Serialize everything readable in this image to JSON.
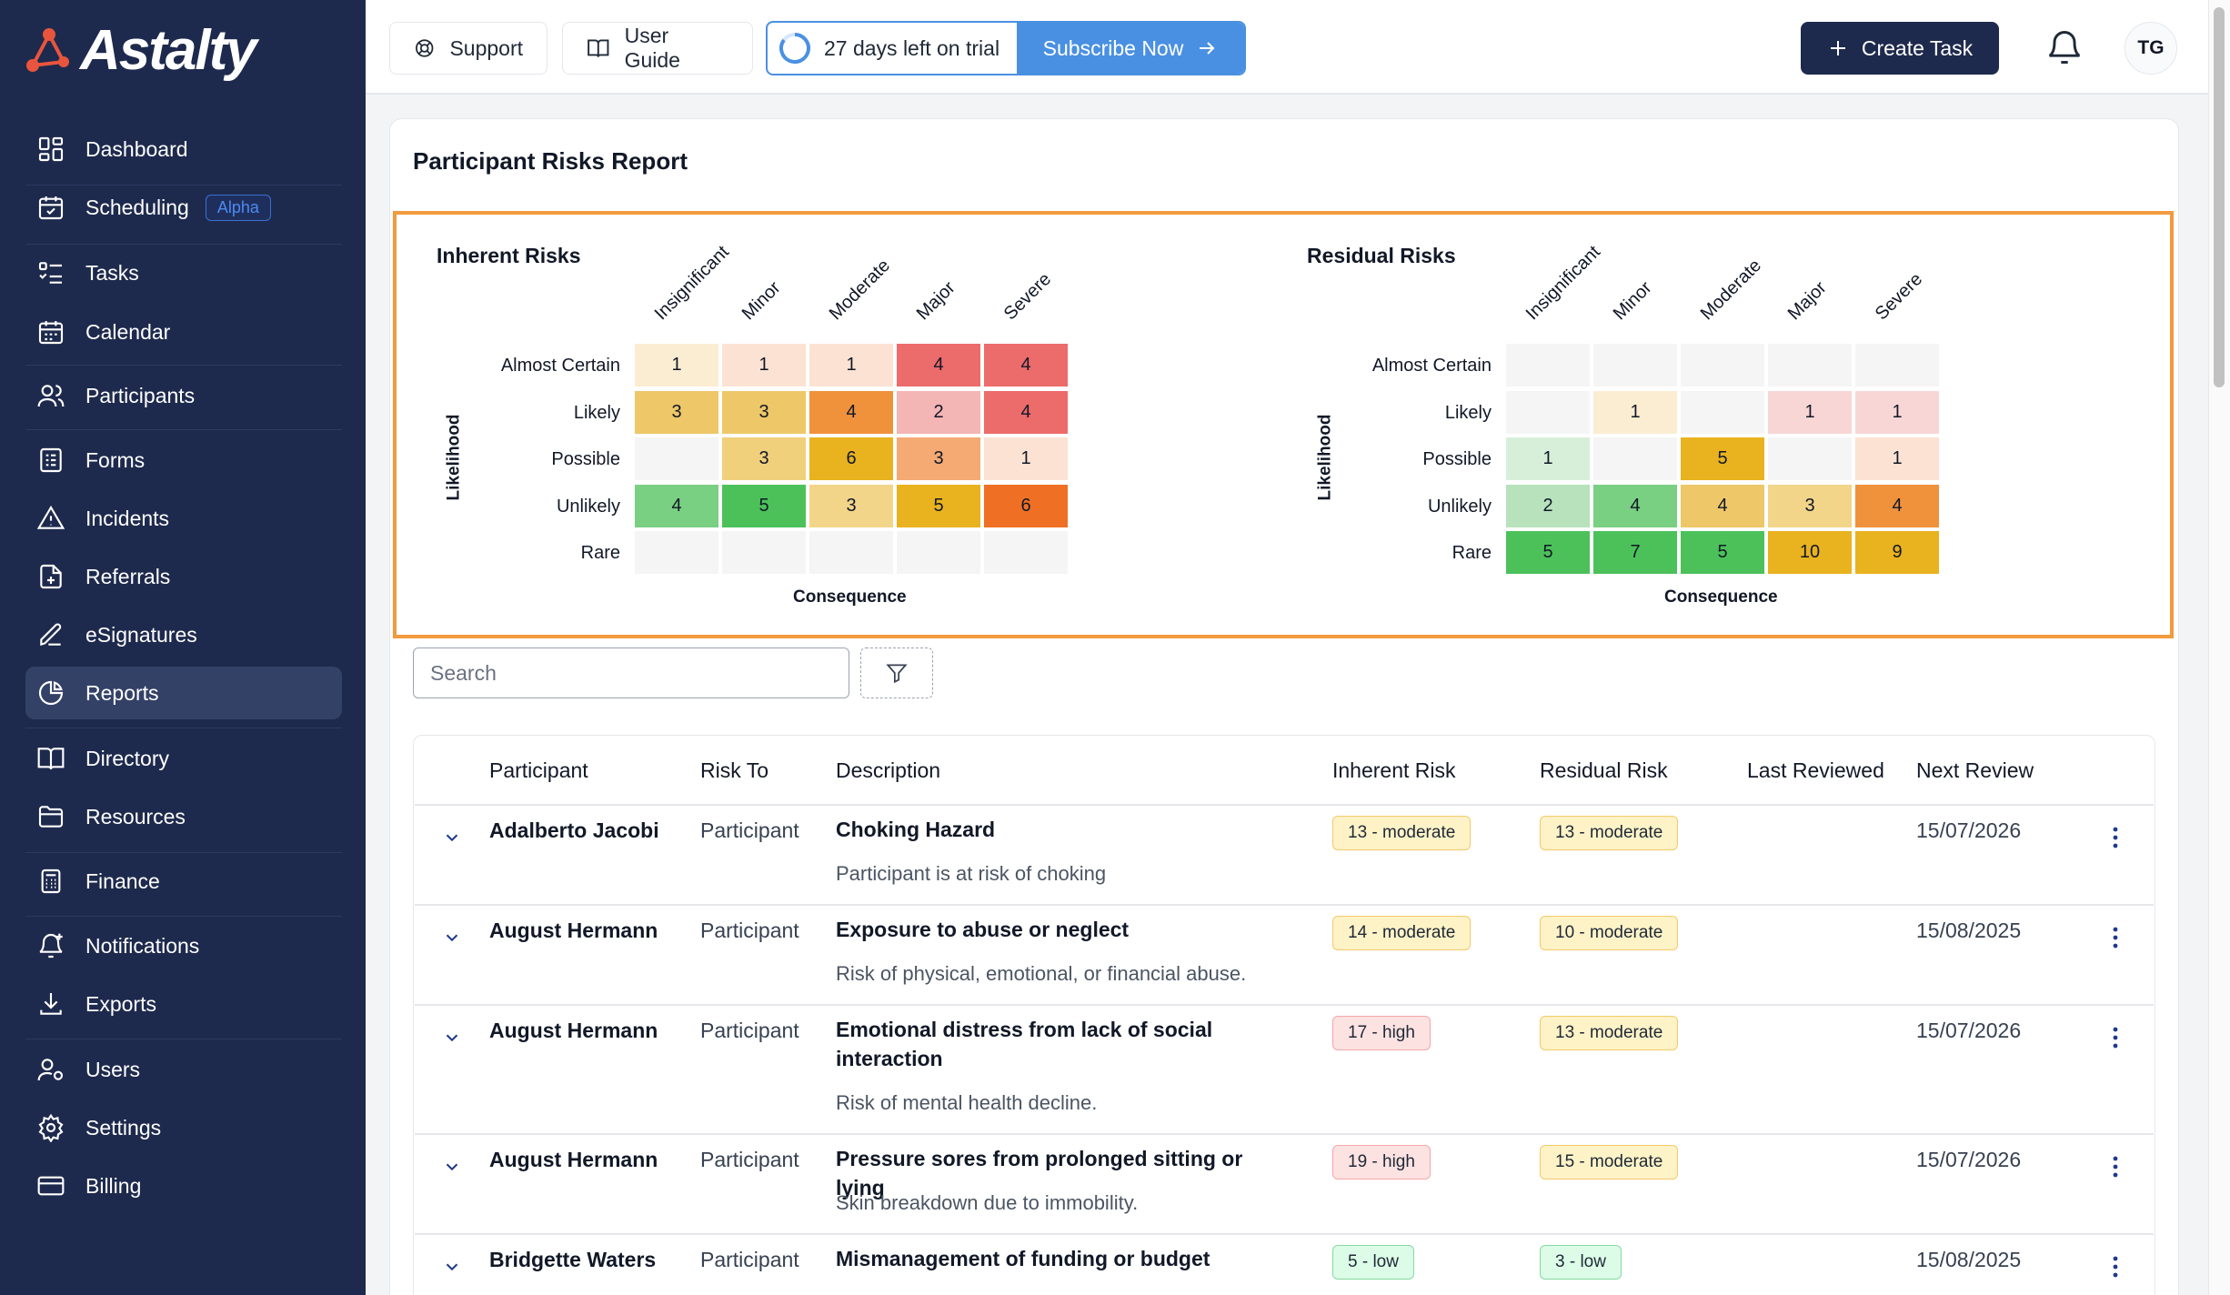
{
  "app": {
    "logo_text": "Astalty"
  },
  "sidebar": {
    "items": [
      {
        "label": "Dashboard",
        "icon": "dashboard-icon"
      },
      {
        "label": "Scheduling",
        "icon": "calendar-check-icon",
        "badge": "Alpha"
      },
      {
        "label": "Tasks",
        "icon": "tasks-icon"
      },
      {
        "label": "Calendar",
        "icon": "calendar-icon"
      },
      {
        "label": "Participants",
        "icon": "users-icon"
      },
      {
        "label": "Forms",
        "icon": "forms-icon"
      },
      {
        "label": "Incidents",
        "icon": "warning-icon"
      },
      {
        "label": "Referrals",
        "icon": "file-plus-icon"
      },
      {
        "label": "eSignatures",
        "icon": "signature-icon"
      },
      {
        "label": "Reports",
        "icon": "pie-chart-icon",
        "active": true
      },
      {
        "label": "Directory",
        "icon": "book-icon"
      },
      {
        "label": "Resources",
        "icon": "folder-icon"
      },
      {
        "label": "Finance",
        "icon": "calculator-icon"
      },
      {
        "label": "Notifications",
        "icon": "bell-plus-icon"
      },
      {
        "label": "Exports",
        "icon": "download-icon"
      },
      {
        "label": "Users",
        "icon": "user-cog-icon"
      },
      {
        "label": "Settings",
        "icon": "gear-icon"
      },
      {
        "label": "Billing",
        "icon": "card-icon"
      }
    ]
  },
  "topbar": {
    "support_label": "Support",
    "guide_label": "User Guide",
    "trial_text": "27 days left on trial",
    "subscribe_label": "Subscribe Now",
    "create_task_label": "Create Task",
    "avatar_initials": "TG"
  },
  "page": {
    "title": "Participant Risks Report"
  },
  "matrices": {
    "consequences": [
      "Insignificant",
      "Minor",
      "Moderate",
      "Major",
      "Severe"
    ],
    "likelihoods": [
      "Almost Certain",
      "Likely",
      "Possible",
      "Unlikely",
      "Rare"
    ],
    "y_axis": "Likelihood",
    "x_axis": "Consequence",
    "inherent": {
      "title": "Inherent Risks",
      "values": [
        [
          "1",
          "1",
          "1",
          "4",
          "4"
        ],
        [
          "3",
          "3",
          "4",
          "2",
          "4"
        ],
        [
          "",
          "3",
          "6",
          "3",
          "1"
        ],
        [
          "4",
          "5",
          "3",
          "5",
          "6"
        ],
        [
          "",
          "",
          "",
          "",
          ""
        ]
      ],
      "colors": [
        [
          "#fbedd2",
          "#fce2d3",
          "#fce2d3",
          "#ec6b6b",
          "#ec6b6b"
        ],
        [
          "#edc768",
          "#edc768",
          "#f0913c",
          "#f4b5b5",
          "#ec6b6b"
        ],
        [
          "#f5f5f5",
          "#f1d07c",
          "#e9b21f",
          "#f5aa73",
          "#fce2d3"
        ],
        [
          "#79cf82",
          "#4cc15a",
          "#f2d589",
          "#e9b21f",
          "#ef7024"
        ],
        [
          "#f5f5f5",
          "#f5f5f5",
          "#f5f5f5",
          "#f5f5f5",
          "#f5f5f5"
        ]
      ]
    },
    "residual": {
      "title": "Residual Risks",
      "values": [
        [
          "",
          "",
          "",
          "",
          ""
        ],
        [
          "",
          "1",
          "",
          "1",
          "1"
        ],
        [
          "1",
          "",
          "5",
          "",
          "1"
        ],
        [
          "2",
          "4",
          "4",
          "3",
          "4"
        ],
        [
          "5",
          "7",
          "5",
          "10",
          "9"
        ]
      ],
      "colors": [
        [
          "#f5f5f5",
          "#f5f5f5",
          "#f5f5f5",
          "#f5f5f5",
          "#f5f5f5"
        ],
        [
          "#f5f5f5",
          "#fbedd2",
          "#f5f5f5",
          "#f8d6d6",
          "#f8d6d6"
        ],
        [
          "#d7efd9",
          "#f5f5f5",
          "#e9b21f",
          "#f5f5f5",
          "#fce2d3"
        ],
        [
          "#b7e2bc",
          "#79cf82",
          "#edc768",
          "#f2d589",
          "#f0913c"
        ],
        [
          "#4cc15a",
          "#4cc15a",
          "#4cc15a",
          "#e9b21f",
          "#e9b21f"
        ]
      ]
    }
  },
  "search": {
    "placeholder": "Search"
  },
  "table": {
    "headers": [
      "Participant",
      "Risk To",
      "Description",
      "Inherent Risk",
      "Residual Risk",
      "Last Reviewed",
      "Next Review"
    ],
    "rows": [
      {
        "participant": "Adalberto Jacobi",
        "risk_to": "Participant",
        "title": "Choking Hazard",
        "subtitle": "Participant is at risk of choking",
        "inherent": "13 - moderate",
        "inherent_level": "moderate",
        "residual": "13 - moderate",
        "residual_level": "moderate",
        "last_reviewed": "",
        "next_review": "15/07/2026"
      },
      {
        "participant": "August Hermann",
        "risk_to": "Participant",
        "title": "Exposure to abuse or neglect",
        "subtitle": "Risk of physical, emotional, or financial abuse.",
        "inherent": "14 - moderate",
        "inherent_level": "moderate",
        "residual": "10 - moderate",
        "residual_level": "moderate",
        "last_reviewed": "",
        "next_review": "15/08/2025"
      },
      {
        "participant": "August Hermann",
        "risk_to": "Participant",
        "title": "Emotional distress from lack of social interaction",
        "subtitle": "Risk of mental health decline.",
        "inherent": "17 - high",
        "inherent_level": "high",
        "residual": "13 - moderate",
        "residual_level": "moderate",
        "last_reviewed": "",
        "next_review": "15/07/2026"
      },
      {
        "participant": "August Hermann",
        "risk_to": "Participant",
        "title": "Pressure sores from prolonged sitting or lying",
        "subtitle": "Skin breakdown due to immobility.",
        "inherent": "19 - high",
        "inherent_level": "high",
        "residual": "15 - moderate",
        "residual_level": "moderate",
        "last_reviewed": "",
        "next_review": "15/07/2026"
      },
      {
        "participant": "Bridgette Waters",
        "risk_to": "Participant",
        "title": "Mismanagement of funding or budget",
        "subtitle": "",
        "inherent": "5 - low",
        "inherent_level": "low",
        "residual": "3 - low",
        "residual_level": "low",
        "last_reviewed": "",
        "next_review": "15/08/2025"
      }
    ]
  }
}
